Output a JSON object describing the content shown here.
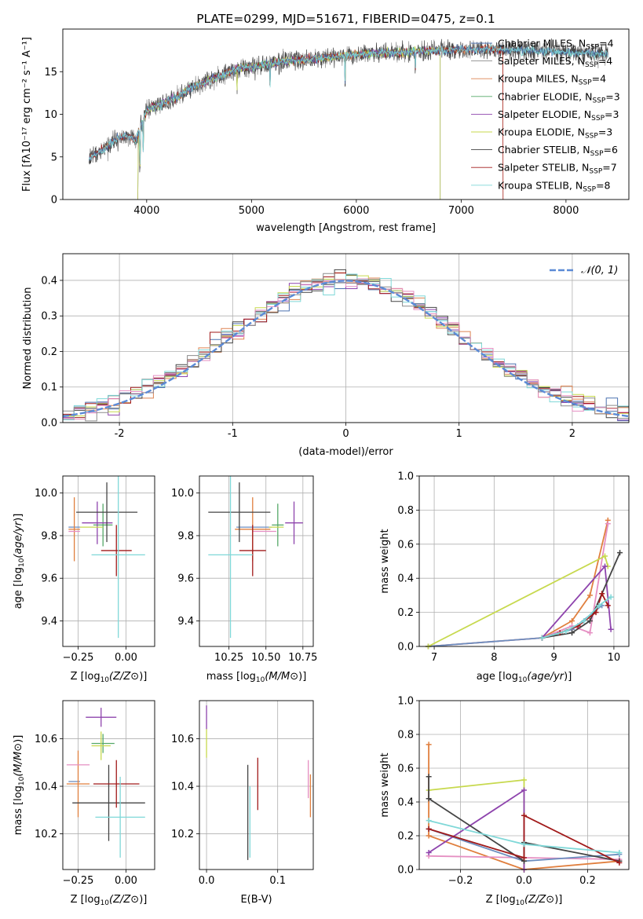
{
  "colors": {
    "Chabrier MILES": "#4c72b0",
    "Salpeter MILES": "#8c8c8c",
    "Kroupa MILES": "#dd8452",
    "Chabrier ELODIE": "#55a868",
    "Salpeter ELODIE": "#8e44ad",
    "Kroupa ELODIE": "#c7d94e",
    "Chabrier STELIB": "#444444",
    "Salpeter STELIB": "#a11a1a",
    "Kroupa STELIB": "#7fd8d8",
    "extra1": "#6c8ebf",
    "extra2": "#e07f3e",
    "extra3": "#e58fc2",
    "normal": "#5b8ad6"
  },
  "chart_data": [
    {
      "type": "line",
      "panel": "spectrum",
      "title": "PLATE=0299, MJD=51671, FIBERID=0475, z=0.1",
      "xlabel": "wavelength [Angstrom, rest frame]",
      "ylabel": "Flux [f",
      "ylabel_full": "Flux [fλ10⁻¹⁷ erg cm⁻² s⁻¹ A⁻¹]",
      "xlim": [
        3200,
        8600
      ],
      "ylim": [
        0,
        20
      ],
      "xticks": [
        4000,
        5000,
        6000,
        7000,
        8000
      ],
      "yticks": [
        0,
        5,
        10,
        15
      ],
      "legend": [
        {
          "name": "Chabrier MILES, N",
          "sub": "SSP",
          "rest": "=4",
          "color": "Chabrier MILES"
        },
        {
          "name": "Salpeter MILES, N",
          "sub": "SSP",
          "rest": "=4",
          "color": "Salpeter MILES"
        },
        {
          "name": "Kroupa MILES, N",
          "sub": "SSP",
          "rest": "=4",
          "color": "Kroupa MILES"
        },
        {
          "name": "Chabrier ELODIE, N",
          "sub": "SSP",
          "rest": "=3",
          "color": "Chabrier ELODIE"
        },
        {
          "name": "Salpeter ELODIE, N",
          "sub": "SSP",
          "rest": "=3",
          "color": "Salpeter ELODIE"
        },
        {
          "name": "Kroupa ELODIE, N",
          "sub": "SSP",
          "rest": "=3",
          "color": "Kroupa ELODIE"
        },
        {
          "name": "Chabrier STELIB, N",
          "sub": "SSP",
          "rest": "=6",
          "color": "Chabrier STELIB"
        },
        {
          "name": "Salpeter STELIB, N",
          "sub": "SSP",
          "rest": "=7",
          "color": "Salpeter STELIB"
        },
        {
          "name": "Kroupa STELIB, N",
          "sub": "SSP",
          "rest": "=8",
          "color": "Kroupa STELIB"
        }
      ],
      "envelope": {
        "x": [
          3450,
          3500,
          3600,
          3700,
          3800,
          3900,
          4000,
          4100,
          4200,
          4300,
          4400,
          4500,
          4600,
          4700,
          4800,
          4900,
          5000,
          5200,
          5400,
          5600,
          5800,
          6000,
          6200,
          6400,
          6600,
          6800,
          7000,
          7200,
          7400,
          7600,
          7800,
          8000,
          8200,
          8400
        ],
        "y": [
          4.8,
          5.2,
          6.0,
          7.0,
          7.5,
          7.0,
          10.5,
          11.0,
          11.5,
          12.0,
          13.0,
          13.5,
          14.0,
          14.5,
          15.0,
          15.5,
          15.5,
          16.0,
          16.3,
          16.5,
          16.8,
          17.0,
          17.2,
          17.2,
          17.4,
          17.5,
          17.6,
          17.6,
          17.6,
          17.5,
          17.4,
          17.3,
          17.2,
          17.0
        ]
      }
    },
    {
      "type": "histogram",
      "panel": "residuals",
      "xlabel": "(data-model)/error",
      "ylabel": "Normed distribution",
      "xlim": [
        -2.5,
        2.5
      ],
      "ylim": [
        0,
        0.475
      ],
      "xticks": [
        -2,
        -1,
        0,
        1,
        2
      ],
      "yticks": [
        0.0,
        0.1,
        0.2,
        0.3,
        0.4
      ],
      "legend": [
        {
          "name": "𝒩(0, 1)",
          "color": "normal"
        }
      ]
    },
    {
      "type": "scatter",
      "panel": "age-vs-Z",
      "xlabel": "Z [log",
      "ylabel": "age [log",
      "xlabel_full": "Z [log10(Z/Z⊙)]",
      "ylabel_full": "age [log10(age/yr)]",
      "xlim": [
        -0.33,
        0.15
      ],
      "ylim": [
        9.28,
        10.08
      ],
      "xticks": [
        -0.25,
        0.0
      ],
      "xticklabels": [
        "−0.25",
        "0.00"
      ],
      "yticks": [
        9.4,
        9.6,
        9.8,
        10.0
      ],
      "points": [
        {
          "x": -0.27,
          "y": 9.84,
          "xerr": 0.03,
          "yerr": 0.0,
          "color": "extra1"
        },
        {
          "x": -0.27,
          "y": 9.83,
          "xerr": 0.03,
          "yerr": 0.15,
          "color": "extra2"
        },
        {
          "x": -0.27,
          "y": 9.82,
          "xerr": 0.03,
          "yerr": 0.0,
          "color": "extra3"
        },
        {
          "x": -0.12,
          "y": 9.85,
          "xerr": 0.05,
          "yerr": 0.1,
          "color": "Chabrier ELODIE"
        },
        {
          "x": -0.15,
          "y": 9.86,
          "xerr": 0.08,
          "yerr": 0.1,
          "color": "Salpeter ELODIE"
        },
        {
          "x": -0.18,
          "y": 9.84,
          "xerr": 0.06,
          "yerr": 0.0,
          "color": "Kroupa ELODIE"
        },
        {
          "x": -0.1,
          "y": 9.91,
          "xerr": 0.16,
          "yerr": 0.14,
          "color": "Chabrier STELIB"
        },
        {
          "x": -0.05,
          "y": 9.73,
          "xerr": 0.08,
          "yerr": 0.12,
          "color": "Salpeter STELIB"
        },
        {
          "x": -0.04,
          "y": 9.71,
          "xerr": 0.14,
          "yerr": 0.39,
          "color": "Kroupa STELIB"
        }
      ]
    },
    {
      "type": "scatter",
      "panel": "age-vs-mass",
      "xlabel": "mass [log",
      "xlabel_full": "mass [log10(M/M⊙)]",
      "xlim": [
        10.05,
        10.82
      ],
      "ylim": [
        9.28,
        10.08
      ],
      "xticks": [
        10.25,
        10.5,
        10.75
      ],
      "xticklabels": [
        "10.25",
        "10.50",
        "10.75"
      ],
      "yticks": [
        9.4,
        9.6,
        9.8,
        10.0
      ],
      "points": [
        {
          "x": 10.42,
          "y": 9.84,
          "xerr": 0.12,
          "yerr": 0.0,
          "color": "extra1"
        },
        {
          "x": 10.41,
          "y": 9.83,
          "xerr": 0.12,
          "yerr": 0.15,
          "color": "extra2"
        },
        {
          "x": 10.49,
          "y": 9.82,
          "xerr": 0.08,
          "yerr": 0.0,
          "color": "extra3"
        },
        {
          "x": 10.58,
          "y": 9.85,
          "xerr": 0.04,
          "yerr": 0.1,
          "color": "Chabrier ELODIE"
        },
        {
          "x": 10.69,
          "y": 9.86,
          "xerr": 0.06,
          "yerr": 0.1,
          "color": "Salpeter ELODIE"
        },
        {
          "x": 10.57,
          "y": 9.84,
          "xerr": 0.05,
          "yerr": 0.0,
          "color": "Kroupa ELODIE"
        },
        {
          "x": 10.32,
          "y": 9.91,
          "xerr": 0.21,
          "yerr": 0.14,
          "color": "Chabrier STELIB"
        },
        {
          "x": 10.41,
          "y": 9.73,
          "xerr": 0.09,
          "yerr": 0.12,
          "color": "Salpeter STELIB"
        },
        {
          "x": 10.26,
          "y": 9.71,
          "xerr": 0.15,
          "yerr": 0.39,
          "color": "Kroupa STELIB"
        }
      ]
    },
    {
      "type": "line",
      "panel": "mass-weight-vs-age",
      "xlabel": "age  [log",
      "xlabel_full": "age [log10(age/yr)]",
      "ylabel": "mass weight",
      "xlim": [
        6.75,
        10.25
      ],
      "ylim": [
        0,
        1
      ],
      "xticks": [
        7,
        8,
        9,
        10
      ],
      "yticks": [
        0.0,
        0.2,
        0.4,
        0.6,
        0.8,
        1.0
      ],
      "series": [
        {
          "color": "extra2",
          "x": [
            6.9,
            8.8,
            9.3,
            9.6,
            9.9
          ],
          "y": [
            0.0,
            0.05,
            0.15,
            0.3,
            0.74
          ]
        },
        {
          "color": "extra3",
          "x": [
            6.9,
            8.8,
            9.3,
            9.6,
            9.9
          ],
          "y": [
            0.0,
            0.05,
            0.12,
            0.08,
            0.72
          ]
        },
        {
          "color": "extra1",
          "x": [
            6.9,
            8.8,
            9.3,
            9.8
          ],
          "y": [
            0.0,
            0.05,
            0.1,
            0.24
          ]
        },
        {
          "color": "Kroupa ELODIE",
          "x": [
            6.9,
            9.85,
            9.9
          ],
          "y": [
            0.0,
            0.53,
            0.47
          ]
        },
        {
          "color": "Salpeter ELODIE",
          "x": [
            8.8,
            9.85,
            9.95
          ],
          "y": [
            0.05,
            0.47,
            0.1
          ]
        },
        {
          "color": "Chabrier STELIB",
          "x": [
            8.8,
            9.3,
            9.6,
            10.1
          ],
          "y": [
            0.05,
            0.08,
            0.15,
            0.55
          ]
        },
        {
          "color": "Salpeter STELIB",
          "x": [
            8.8,
            9.1,
            9.4,
            9.7,
            9.8,
            9.9
          ],
          "y": [
            0.05,
            0.08,
            0.12,
            0.2,
            0.31,
            0.24
          ]
        },
        {
          "color": "Kroupa STELIB",
          "x": [
            8.8,
            9.2,
            9.5,
            9.75,
            9.95
          ],
          "y": [
            0.05,
            0.09,
            0.15,
            0.24,
            0.29
          ]
        }
      ]
    },
    {
      "type": "scatter",
      "panel": "mass-vs-Z",
      "xlabel": "Z [log",
      "ylabel": "mass [log",
      "ylabel_full": "mass [log10(M/M⊙)]",
      "xlim": [
        -0.33,
        0.15
      ],
      "ylim": [
        10.05,
        10.76
      ],
      "xticks": [
        -0.25,
        0.0
      ],
      "xticklabels": [
        "−0.25",
        "0.00"
      ],
      "yticks": [
        10.2,
        10.4,
        10.6
      ],
      "points": [
        {
          "x": -0.27,
          "y": 10.42,
          "xerr": 0.03,
          "yerr": 0.0,
          "color": "extra1"
        },
        {
          "x": -0.25,
          "y": 10.41,
          "xerr": 0.06,
          "yerr": 0.14,
          "color": "extra2"
        },
        {
          "x": -0.25,
          "y": 10.49,
          "xerr": 0.06,
          "yerr": 0.0,
          "color": "extra3"
        },
        {
          "x": -0.12,
          "y": 10.58,
          "xerr": 0.06,
          "yerr": 0.04,
          "color": "Chabrier ELODIE"
        },
        {
          "x": -0.13,
          "y": 10.69,
          "xerr": 0.08,
          "yerr": 0.04,
          "color": "Salpeter ELODIE"
        },
        {
          "x": -0.13,
          "y": 10.57,
          "xerr": 0.05,
          "yerr": 0.06,
          "color": "Kroupa ELODIE"
        },
        {
          "x": -0.09,
          "y": 10.33,
          "xerr": 0.19,
          "yerr": 0.16,
          "color": "Chabrier STELIB"
        },
        {
          "x": -0.05,
          "y": 10.41,
          "xerr": 0.12,
          "yerr": 0.1,
          "color": "Salpeter STELIB"
        },
        {
          "x": -0.03,
          "y": 10.27,
          "xerr": 0.13,
          "yerr": 0.17,
          "color": "Kroupa STELIB"
        }
      ]
    },
    {
      "type": "scatter",
      "panel": "mass-vs-EBV",
      "xlabel": "E(B-V)",
      "xlim": [
        -0.01,
        0.15
      ],
      "ylim": [
        10.05,
        10.76
      ],
      "xticks": [
        0.0,
        0.1
      ],
      "xticklabels": [
        "0.0",
        "0.1"
      ],
      "yticks": [
        10.2,
        10.4,
        10.6
      ],
      "points": [
        {
          "x": 0.0,
          "y": 10.69,
          "xerr": 0.0,
          "yerr": 0.05,
          "color": "Salpeter ELODIE"
        },
        {
          "x": 0.0,
          "y": 10.58,
          "xerr": 0.0,
          "yerr": 0.06,
          "color": "Kroupa ELODIE"
        },
        {
          "x": 0.058,
          "y": 10.29,
          "xerr": 0.0,
          "yerr": 0.2,
          "color": "Chabrier STELIB"
        },
        {
          "x": 0.072,
          "y": 10.41,
          "xerr": 0.0,
          "yerr": 0.11,
          "color": "Salpeter STELIB"
        },
        {
          "x": 0.061,
          "y": 10.25,
          "xerr": 0.0,
          "yerr": 0.15,
          "color": "Kroupa STELIB"
        },
        {
          "x": 0.143,
          "y": 10.43,
          "xerr": 0.0,
          "yerr": 0.08,
          "color": "extra3"
        },
        {
          "x": 0.146,
          "y": 10.36,
          "xerr": 0.0,
          "yerr": 0.09,
          "color": "extra2"
        }
      ]
    },
    {
      "type": "line",
      "panel": "mass-weight-vs-Z",
      "xlabel": "Z [log",
      "ylabel": "mass weight",
      "xlim": [
        -0.33,
        0.33
      ],
      "ylim": [
        0,
        1
      ],
      "xticks": [
        -0.2,
        0.0,
        0.2
      ],
      "xticklabels": [
        "−0.2",
        "0.0",
        "0.2"
      ],
      "yticks": [
        0.0,
        0.2,
        0.4,
        0.6,
        0.8,
        1.0
      ],
      "series": [
        {
          "color": "extra2",
          "x": [
            -0.3,
            -0.3,
            0.0,
            0.3
          ],
          "y": [
            0.74,
            0.2,
            0.0,
            0.05
          ]
        },
        {
          "color": "extra3",
          "x": [
            -0.3,
            0.3
          ],
          "y": [
            0.08,
            0.06
          ]
        },
        {
          "color": "extra1",
          "x": [
            -0.3,
            0.0,
            0.3
          ],
          "y": [
            0.24,
            0.05,
            0.09
          ]
        },
        {
          "color": "Kroupa ELODIE",
          "x": [
            -0.3,
            0.0,
            0.0
          ],
          "y": [
            0.47,
            0.53,
            0.0
          ]
        },
        {
          "color": "Salpeter ELODIE",
          "x": [
            -0.3,
            0.0,
            0.0
          ],
          "y": [
            0.1,
            0.47,
            0.0
          ]
        },
        {
          "color": "Chabrier STELIB",
          "x": [
            -0.3,
            -0.3,
            0.0,
            0.0,
            0.3
          ],
          "y": [
            0.55,
            0.42,
            0.05,
            0.16,
            0.05
          ]
        },
        {
          "color": "Salpeter STELIB",
          "x": [
            -0.3,
            0.0,
            0.0,
            0.3
          ],
          "y": [
            0.24,
            0.07,
            0.32,
            0.04
          ]
        },
        {
          "color": "Kroupa STELIB",
          "x": [
            -0.3,
            0.0,
            0.3
          ],
          "y": [
            0.29,
            0.15,
            0.1
          ]
        }
      ]
    }
  ]
}
